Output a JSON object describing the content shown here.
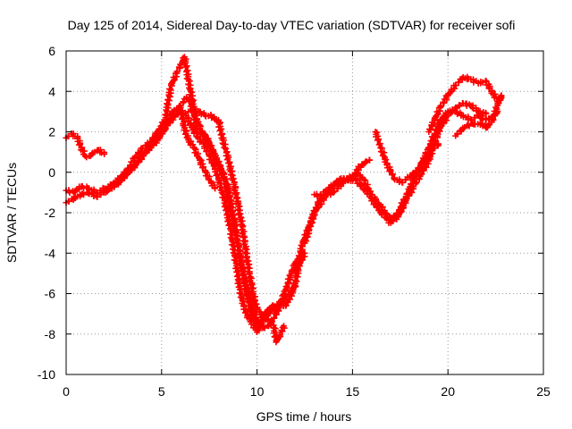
{
  "chart_data": {
    "type": "scatter",
    "title": "Day 125 of 2014, Sidereal Day-to-day VTEC variation (SDTVAR) for receiver sofi",
    "xlabel": "GPS time / hours",
    "ylabel": "SDTVAR / TECUs",
    "xlim": [
      0,
      25
    ],
    "ylim": [
      -10,
      6
    ],
    "x_ticks": [
      0,
      5,
      10,
      15,
      20,
      25
    ],
    "y_ticks": [
      -10,
      -8,
      -6,
      -4,
      -2,
      0,
      2,
      4,
      6
    ],
    "grid": true,
    "marker": "+",
    "color": "#ff0000",
    "series": [
      {
        "x": [
          0.0,
          0.3,
          0.6,
          0.8,
          1.0,
          1.2,
          1.5,
          1.7,
          2.0
        ],
        "y": [
          1.7,
          1.9,
          1.7,
          1.2,
          0.8,
          0.8,
          1.0,
          1.1,
          0.9
        ]
      },
      {
        "x": [
          0.0,
          0.4,
          0.8,
          1.2,
          1.6,
          2.0,
          2.4,
          2.8,
          3.2,
          3.6,
          4.0,
          4.4,
          4.8,
          5.2,
          5.6,
          6.0,
          6.2,
          6.4,
          6.7,
          7.0,
          7.3,
          7.6,
          7.8
        ],
        "y": [
          -0.9,
          -1.0,
          -0.7,
          -0.8,
          -1.0,
          -0.8,
          -0.7,
          -0.3,
          0.1,
          0.7,
          1.2,
          1.5,
          2.0,
          2.6,
          3.0,
          3.2,
          2.2,
          1.6,
          1.2,
          0.6,
          0.0,
          -0.5,
          -0.8
        ]
      },
      {
        "x": [
          0.0,
          0.4,
          0.8,
          1.2,
          1.6,
          2.0,
          2.4,
          2.8,
          3.2,
          3.6,
          4.0,
          4.4,
          4.8,
          5.2,
          5.6,
          6.0,
          6.3,
          6.6,
          6.9,
          7.2,
          7.5,
          7.8,
          8.0,
          8.3,
          8.6,
          8.9,
          9.1,
          9.3,
          9.5,
          9.7,
          9.9,
          10.0,
          10.3,
          10.6,
          10.9,
          11.2,
          11.5,
          11.8,
          12.0
        ],
        "y": [
          -1.5,
          -1.3,
          -1.1,
          -1.0,
          -1.2,
          -1.0,
          -0.8,
          -0.5,
          -0.1,
          0.3,
          0.8,
          1.2,
          1.6,
          2.2,
          2.7,
          3.0,
          2.8,
          2.2,
          1.7,
          1.4,
          0.8,
          0.2,
          -0.4,
          -1.4,
          -2.8,
          -4.5,
          -5.8,
          -6.6,
          -7.1,
          -7.4,
          -7.7,
          -7.9,
          -7.3,
          -7.0,
          -6.8,
          -6.4,
          -6.6,
          -6.0,
          -5.6
        ]
      },
      {
        "x": [
          2.0,
          2.4,
          2.8,
          3.2,
          3.6,
          4.0,
          4.4,
          4.8,
          5.2,
          5.6,
          6.0,
          6.3,
          6.5,
          6.7,
          6.9,
          7.1,
          7.3,
          7.5,
          7.7,
          8.0,
          8.3,
          8.6,
          8.9,
          9.2,
          9.5,
          9.8,
          10.0,
          10.3,
          10.6,
          10.9,
          11.2,
          11.5,
          11.8,
          12.0,
          12.2,
          12.4
        ],
        "y": [
          -1.0,
          -0.6,
          -0.4,
          0.0,
          0.4,
          0.8,
          1.3,
          1.8,
          2.3,
          2.8,
          3.3,
          3.7,
          3.5,
          3.0,
          2.5,
          2.0,
          1.7,
          1.4,
          1.0,
          0.3,
          -0.4,
          -1.6,
          -3.0,
          -4.6,
          -5.8,
          -6.8,
          -7.5,
          -7.7,
          -7.6,
          -7.2,
          -6.6,
          -5.8,
          -5.0,
          -4.5,
          -4.3,
          -4.0
        ]
      },
      {
        "x": [
          5.2,
          5.5,
          5.8,
          6.0,
          6.2,
          6.4,
          6.6,
          6.8,
          7.0,
          7.3,
          7.6,
          7.9,
          8.2,
          8.5,
          8.8,
          9.1,
          9.4,
          9.7,
          9.9,
          10.2,
          10.5,
          10.8,
          11.1,
          11.4,
          11.7,
          12.0,
          12.2,
          12.5
        ],
        "y": [
          2.7,
          4.3,
          4.9,
          5.3,
          5.7,
          4.6,
          3.6,
          2.3,
          2.0,
          1.8,
          1.2,
          0.6,
          0.0,
          -0.8,
          -2.4,
          -4.2,
          -5.8,
          -6.9,
          -7.4,
          -7.3,
          -6.9,
          -6.6,
          -6.6,
          -6.3,
          -6.0,
          -5.5,
          -4.6,
          -4.0
        ]
      },
      {
        "x": [
          6.4,
          6.7,
          7.0,
          7.3,
          7.6,
          7.8,
          8.0,
          8.2,
          8.4,
          8.6,
          8.8,
          9.0,
          9.2,
          9.4,
          9.6,
          9.8,
          10.0,
          10.3,
          10.6,
          10.9,
          11.0,
          11.2,
          11.4
        ],
        "y": [
          3.0,
          3.1,
          3.0,
          2.8,
          2.8,
          2.6,
          2.5,
          1.6,
          1.0,
          0.2,
          -0.6,
          -1.6,
          -2.6,
          -3.8,
          -5.0,
          -6.0,
          -6.8,
          -7.1,
          -7.3,
          -7.7,
          -8.4,
          -8.1,
          -7.6
        ]
      },
      {
        "x": [
          12.0,
          12.4,
          12.8,
          13.2,
          13.6,
          14.0,
          14.4,
          14.8,
          15.2,
          15.6,
          16.0,
          16.4,
          16.8,
          17.0,
          17.4,
          17.8,
          18.2,
          18.6,
          19.0,
          19.2,
          19.5
        ],
        "y": [
          -5.0,
          -3.5,
          -2.5,
          -1.5,
          -0.9,
          -0.6,
          -0.3,
          -0.4,
          -0.4,
          -0.8,
          -1.3,
          -1.9,
          -2.3,
          -2.5,
          -2.2,
          -1.4,
          -0.7,
          -0.1,
          0.6,
          1.1,
          1.4
        ]
      },
      {
        "x": [
          12.5,
          13.0,
          13.5,
          14.0,
          14.5,
          15.0,
          15.3,
          15.6,
          16.0,
          16.4,
          16.8,
          17.0,
          17.4,
          17.8,
          18.2,
          18.6,
          19.0,
          19.3,
          19.6,
          19.9
        ],
        "y": [
          -3.5,
          -2.0,
          -1.3,
          -0.6,
          -0.4,
          -0.2,
          -0.1,
          -0.4,
          -1.1,
          -1.6,
          -2.1,
          -2.3,
          -2.0,
          -1.2,
          -0.4,
          0.4,
          1.2,
          1.9,
          2.6,
          2.8
        ]
      },
      {
        "x": [
          13.0,
          13.5,
          14.0,
          14.5,
          15.0,
          15.5,
          15.9
        ],
        "y": [
          -1.1,
          -1.2,
          -1.0,
          -0.5,
          -0.2,
          0.4,
          0.6
        ]
      },
      {
        "x": [
          16.2,
          16.5,
          16.8,
          17.2,
          17.6,
          18.0,
          18.4,
          18.8,
          19.2,
          19.6,
          20.0,
          20.4,
          20.8,
          21.2,
          21.6,
          22.0
        ],
        "y": [
          2.0,
          1.2,
          0.4,
          -0.3,
          -0.5,
          -0.2,
          0.1,
          0.6,
          1.3,
          2.2,
          2.8,
          3.2,
          3.4,
          3.3,
          3.0,
          2.9
        ]
      },
      {
        "x": [
          19.0,
          19.3,
          19.6,
          20.0,
          20.4,
          20.8,
          21.2,
          21.6,
          22.0,
          22.3,
          22.6,
          22.8
        ],
        "y": [
          2.0,
          2.6,
          3.2,
          3.8,
          4.3,
          4.7,
          4.6,
          4.4,
          4.5,
          4.0,
          3.5,
          3.7
        ]
      },
      {
        "x": [
          19.6,
          20.0,
          20.4,
          20.8,
          21.2,
          21.6,
          22.0,
          22.3,
          22.6
        ],
        "y": [
          2.5,
          3.0,
          3.0,
          2.8,
          2.6,
          2.8,
          2.6,
          2.7,
          3.0
        ]
      },
      {
        "x": [
          20.4,
          20.7,
          21.0,
          21.4,
          21.8,
          22.0,
          22.3,
          22.6,
          22.8
        ],
        "y": [
          1.8,
          2.1,
          2.3,
          2.4,
          2.4,
          2.2,
          2.5,
          3.3,
          3.8
        ]
      }
    ]
  }
}
